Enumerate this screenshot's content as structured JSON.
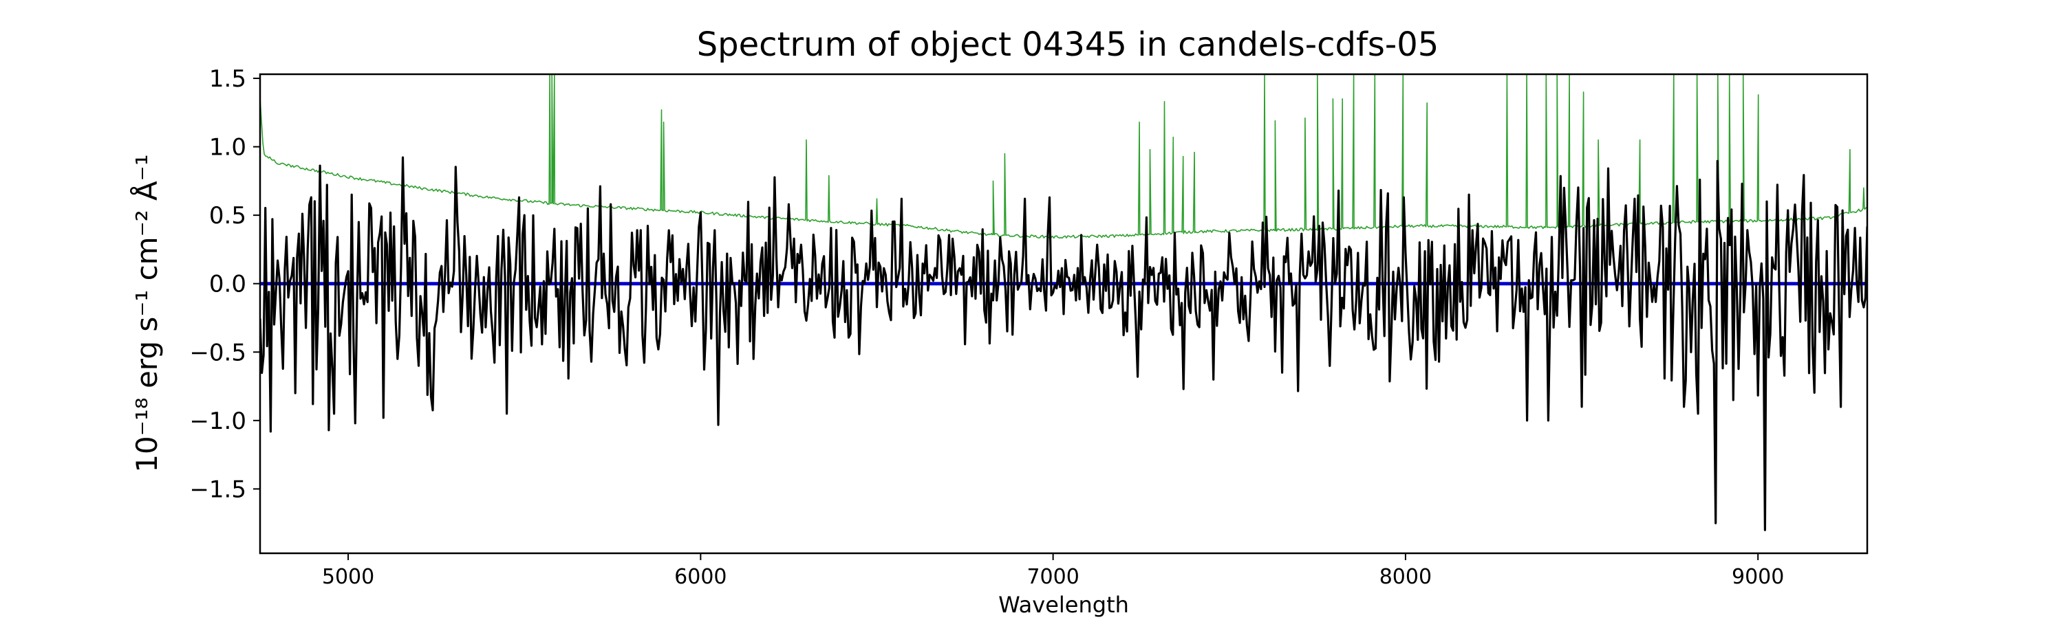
{
  "chart_data": {
    "type": "line",
    "title": "Spectrum of object 04345 in candels-cdfs-05",
    "xlabel": "Wavelength",
    "ylabel": "10⁻¹⁸ erg s⁻¹ cm⁻² Å⁻¹",
    "xlim": [
      4750,
      9310
    ],
    "ylim": [
      -1.97,
      1.53
    ],
    "xticks": [
      5000,
      6000,
      7000,
      8000,
      9000
    ],
    "yticks": [
      -1.5,
      -1.0,
      -0.5,
      0.0,
      0.5,
      1.0,
      1.5
    ],
    "ytick_labels": [
      "−1.5",
      "−1.0",
      "−0.5",
      "0.0",
      "0.5",
      "1.0",
      "1.5"
    ],
    "grid": false,
    "legend": "none",
    "series": [
      {
        "role": "error",
        "color": "#2ca02c",
        "points": [
          [
            4750,
            1.35
          ],
          [
            4760,
            0.95
          ],
          [
            4800,
            0.88
          ],
          [
            4900,
            0.83
          ],
          [
            5000,
            0.78
          ],
          [
            5200,
            0.7
          ],
          [
            5400,
            0.63
          ],
          [
            5600,
            0.58
          ],
          [
            5800,
            0.55
          ],
          [
            6000,
            0.52
          ],
          [
            6200,
            0.48
          ],
          [
            6400,
            0.45
          ],
          [
            6600,
            0.42
          ],
          [
            6800,
            0.36
          ],
          [
            7000,
            0.34
          ],
          [
            7200,
            0.35
          ],
          [
            7400,
            0.38
          ],
          [
            7600,
            0.39
          ],
          [
            7800,
            0.4
          ],
          [
            8000,
            0.42
          ],
          [
            8200,
            0.42
          ],
          [
            8400,
            0.41
          ],
          [
            8600,
            0.43
          ],
          [
            8800,
            0.45
          ],
          [
            9000,
            0.46
          ],
          [
            9200,
            0.48
          ],
          [
            9310,
            0.55
          ]
        ],
        "spikes": [
          [
            5572,
            1.53
          ],
          [
            5578,
            1.53
          ],
          [
            5585,
            1.53
          ],
          [
            5889,
            1.27
          ],
          [
            5895,
            1.18
          ],
          [
            6300,
            1.05
          ],
          [
            6364,
            0.79
          ],
          [
            6500,
            0.62
          ],
          [
            6830,
            0.75
          ],
          [
            6863,
            0.95
          ],
          [
            7245,
            1.18
          ],
          [
            7275,
            0.98
          ],
          [
            7316,
            1.33
          ],
          [
            7341,
            1.07
          ],
          [
            7369,
            0.93
          ],
          [
            7401,
            0.96
          ],
          [
            7600,
            1.53
          ],
          [
            7630,
            1.19
          ],
          [
            7715,
            1.21
          ],
          [
            7750,
            1.53
          ],
          [
            7794,
            1.35
          ],
          [
            7821,
            1.35
          ],
          [
            7853,
            1.53
          ],
          [
            7913,
            1.53
          ],
          [
            7993,
            1.53
          ],
          [
            8061,
            1.32
          ],
          [
            8288,
            1.53
          ],
          [
            8344,
            1.53
          ],
          [
            8399,
            1.53
          ],
          [
            8430,
            1.53
          ],
          [
            8465,
            1.53
          ],
          [
            8505,
            1.4
          ],
          [
            8547,
            1.05
          ],
          [
            8665,
            1.05
          ],
          [
            8761,
            1.53
          ],
          [
            8827,
            1.53
          ],
          [
            8886,
            1.53
          ],
          [
            8919,
            1.53
          ],
          [
            8958,
            1.53
          ],
          [
            9001,
            1.38
          ],
          [
            9261,
            0.98
          ],
          [
            9300,
            0.7
          ]
        ]
      },
      {
        "role": "model",
        "color": "#0000cc",
        "value": 0.0
      },
      {
        "role": "flux",
        "color": "#000000",
        "seed": 4345,
        "sigma_envelope": [
          [
            4750,
            0.42
          ],
          [
            5000,
            0.4
          ],
          [
            5400,
            0.34
          ],
          [
            6000,
            0.26
          ],
          [
            6600,
            0.22
          ],
          [
            7000,
            0.2
          ],
          [
            7400,
            0.24
          ],
          [
            7800,
            0.28
          ],
          [
            8200,
            0.3
          ],
          [
            8600,
            0.36
          ],
          [
            9000,
            0.42
          ],
          [
            9310,
            0.4
          ]
        ],
        "features": [
          [
            4780,
            -1.08
          ],
          [
            4850,
            -0.8
          ],
          [
            4900,
            -0.88
          ],
          [
            4960,
            -0.95
          ],
          [
            5010,
            0.65
          ],
          [
            5020,
            -1.02
          ],
          [
            5100,
            -0.98
          ],
          [
            5140,
            -0.55
          ],
          [
            5200,
            -0.6
          ],
          [
            5310,
            0.45
          ],
          [
            5500,
            0.5
          ],
          [
            5680,
            0.55
          ],
          [
            5745,
            0.58
          ],
          [
            5880,
            -0.48
          ],
          [
            6000,
            0.52
          ],
          [
            6150,
            -0.55
          ],
          [
            6250,
            0.58
          ],
          [
            6570,
            0.62
          ],
          [
            6920,
            0.62
          ],
          [
            6990,
            0.63
          ],
          [
            7240,
            -0.68
          ],
          [
            7372,
            -0.77
          ],
          [
            7650,
            -0.65
          ],
          [
            7810,
            0.68
          ],
          [
            7950,
            0.66
          ],
          [
            8050,
            -0.4
          ],
          [
            8180,
            0.65
          ],
          [
            8345,
            -1.0
          ],
          [
            8405,
            -1.0
          ],
          [
            8450,
            0.7
          ],
          [
            8500,
            -0.9
          ],
          [
            8650,
            0.62
          ],
          [
            8790,
            -0.9
          ],
          [
            8830,
            -0.95
          ],
          [
            8880,
            -1.75
          ],
          [
            8930,
            -0.85
          ],
          [
            9020,
            -1.8
          ],
          [
            9100,
            0.4
          ]
        ]
      }
    ]
  }
}
